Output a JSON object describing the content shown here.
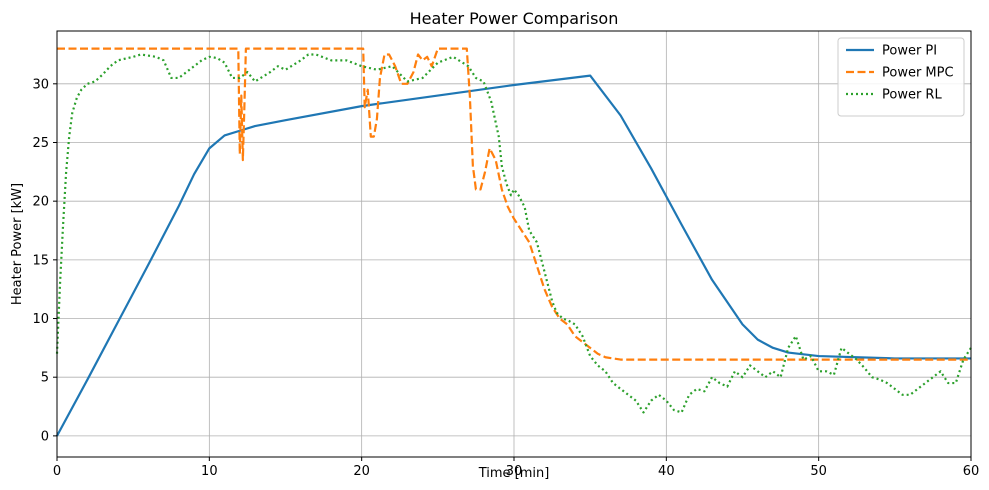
{
  "chart_data": {
    "type": "line",
    "title": "Heater Power Comparison",
    "xlabel": "Time [min]",
    "ylabel": "Heater Power [kW]",
    "xlim": [
      0,
      60
    ],
    "ylim": [
      -1.8,
      34.5
    ],
    "xticks": [
      0,
      10,
      20,
      30,
      40,
      50,
      60
    ],
    "yticks": [
      0,
      5,
      10,
      15,
      20,
      25,
      30
    ],
    "grid": true,
    "legend_position": "top-right",
    "series": [
      {
        "name": "Power PI",
        "color": "#1f77b4",
        "style": "solid",
        "points": [
          [
            0,
            0
          ],
          [
            2,
            4.8
          ],
          [
            4,
            9.7
          ],
          [
            6,
            14.6
          ],
          [
            8,
            19.6
          ],
          [
            9,
            22.3
          ],
          [
            10,
            24.5
          ],
          [
            11,
            25.6
          ],
          [
            12,
            26.0
          ],
          [
            13,
            26.4
          ],
          [
            15,
            26.9
          ],
          [
            20,
            28.1
          ],
          [
            25,
            29.0
          ],
          [
            30,
            29.9
          ],
          [
            35,
            30.7
          ],
          [
            37,
            27.3
          ],
          [
            39,
            22.8
          ],
          [
            41,
            18.0
          ],
          [
            43,
            13.3
          ],
          [
            45,
            9.5
          ],
          [
            46,
            8.2
          ],
          [
            47,
            7.5
          ],
          [
            48,
            7.1
          ],
          [
            50,
            6.8
          ],
          [
            55,
            6.6
          ],
          [
            60,
            6.6
          ]
        ]
      },
      {
        "name": "Power MPC",
        "color": "#ff7f0e",
        "style": "dashed",
        "points": [
          [
            0,
            33
          ],
          [
            11.9,
            33
          ],
          [
            12.0,
            24.0
          ],
          [
            12.1,
            29.0
          ],
          [
            12.2,
            23.5
          ],
          [
            12.3,
            28.0
          ],
          [
            12.4,
            33
          ],
          [
            20.1,
            33
          ],
          [
            20.2,
            28.0
          ],
          [
            20.4,
            29.5
          ],
          [
            20.6,
            25.5
          ],
          [
            20.8,
            25.5
          ],
          [
            21.0,
            27.0
          ],
          [
            21.2,
            30.5
          ],
          [
            21.5,
            32.5
          ],
          [
            21.8,
            32.5
          ],
          [
            22.2,
            31.5
          ],
          [
            22.6,
            30.0
          ],
          [
            23.0,
            30.0
          ],
          [
            23.4,
            31.0
          ],
          [
            23.7,
            32.5
          ],
          [
            24.0,
            32.0
          ],
          [
            24.3,
            32.3
          ],
          [
            24.6,
            31.5
          ],
          [
            25.0,
            33
          ],
          [
            26.9,
            33
          ],
          [
            27.1,
            29.0
          ],
          [
            27.3,
            23.0
          ],
          [
            27.5,
            21.0
          ],
          [
            27.8,
            21.0
          ],
          [
            28.1,
            22.5
          ],
          [
            28.4,
            24.5
          ],
          [
            28.8,
            23.5
          ],
          [
            29.2,
            21.0
          ],
          [
            29.6,
            19.5
          ],
          [
            30.0,
            18.5
          ],
          [
            30.5,
            17.5
          ],
          [
            31.0,
            16.5
          ],
          [
            31.5,
            14.5
          ],
          [
            32.0,
            12.5
          ],
          [
            32.5,
            11.0
          ],
          [
            33.0,
            10.0
          ],
          [
            33.5,
            9.5
          ],
          [
            34.0,
            8.5
          ],
          [
            34.5,
            8.0
          ],
          [
            35.0,
            7.5
          ],
          [
            35.5,
            7.0
          ],
          [
            36.0,
            6.7
          ],
          [
            37.0,
            6.5
          ],
          [
            40,
            6.5
          ],
          [
            50,
            6.5
          ],
          [
            60,
            6.5
          ]
        ]
      },
      {
        "name": "Power RL",
        "color": "#2ca02c",
        "style": "dotted",
        "points": [
          [
            0,
            7
          ],
          [
            0.2,
            13
          ],
          [
            0.4,
            18
          ],
          [
            0.6,
            22.5
          ],
          [
            0.8,
            25.5
          ],
          [
            1.0,
            27.5
          ],
          [
            1.3,
            28.8
          ],
          [
            1.6,
            29.5
          ],
          [
            2.0,
            30.0
          ],
          [
            2.5,
            30.2
          ],
          [
            3.0,
            30.8
          ],
          [
            3.5,
            31.5
          ],
          [
            4.0,
            32.0
          ],
          [
            5.0,
            32.3
          ],
          [
            5.5,
            32.5
          ],
          [
            6.5,
            32.3
          ],
          [
            7.0,
            32.0
          ],
          [
            7.5,
            30.5
          ],
          [
            8.0,
            30.5
          ],
          [
            8.5,
            31.0
          ],
          [
            9.0,
            31.5
          ],
          [
            9.5,
            32.0
          ],
          [
            10.0,
            32.3
          ],
          [
            10.5,
            32.2
          ],
          [
            11.0,
            31.8
          ],
          [
            11.5,
            30.5
          ],
          [
            12.0,
            30.5
          ],
          [
            12.5,
            31.0
          ],
          [
            13.0,
            30.2
          ],
          [
            14.0,
            31.0
          ],
          [
            14.5,
            31.5
          ],
          [
            15.0,
            31.2
          ],
          [
            16.0,
            32.0
          ],
          [
            16.5,
            32.5
          ],
          [
            17.0,
            32.5
          ],
          [
            18.0,
            32.0
          ],
          [
            19.0,
            32.0
          ],
          [
            20.0,
            31.5
          ],
          [
            21.0,
            31.2
          ],
          [
            22.0,
            31.5
          ],
          [
            23.0,
            30.2
          ],
          [
            24.0,
            30.5
          ],
          [
            25.0,
            31.8
          ],
          [
            26.0,
            32.3
          ],
          [
            27.0,
            31.5
          ],
          [
            27.5,
            30.5
          ],
          [
            28.0,
            30.2
          ],
          [
            28.5,
            28.5
          ],
          [
            29.0,
            25.5
          ],
          [
            29.2,
            23.0
          ],
          [
            29.5,
            21.5
          ],
          [
            29.8,
            20.5
          ],
          [
            30.0,
            21.0
          ],
          [
            30.3,
            20.5
          ],
          [
            30.7,
            19.5
          ],
          [
            31.0,
            17.5
          ],
          [
            31.5,
            16.5
          ],
          [
            32.0,
            14.0
          ],
          [
            32.5,
            11.5
          ],
          [
            32.8,
            10.5
          ],
          [
            33.2,
            10.0
          ],
          [
            33.6,
            9.8
          ],
          [
            34.0,
            9.5
          ],
          [
            34.5,
            8.5
          ],
          [
            35.0,
            6.8
          ],
          [
            35.5,
            6.0
          ],
          [
            36.0,
            5.5
          ],
          [
            36.5,
            4.5
          ],
          [
            37.0,
            4.0
          ],
          [
            37.5,
            3.5
          ],
          [
            38.0,
            3.0
          ],
          [
            38.5,
            2.0
          ],
          [
            39.0,
            3.0
          ],
          [
            39.5,
            3.5
          ],
          [
            40.0,
            3.0
          ],
          [
            40.5,
            2.2
          ],
          [
            41.0,
            2.0
          ],
          [
            41.5,
            3.5
          ],
          [
            42.0,
            4.0
          ],
          [
            42.5,
            3.8
          ],
          [
            43.0,
            5.0
          ],
          [
            43.5,
            4.5
          ],
          [
            44.0,
            4.2
          ],
          [
            44.5,
            5.5
          ],
          [
            45.0,
            5.0
          ],
          [
            45.5,
            6.0
          ],
          [
            46.0,
            5.5
          ],
          [
            46.5,
            5.0
          ],
          [
            47.0,
            5.5
          ],
          [
            47.5,
            5.0
          ],
          [
            48.0,
            7.5
          ],
          [
            48.5,
            8.5
          ],
          [
            49.0,
            6.5
          ],
          [
            49.5,
            6.8
          ],
          [
            50.0,
            5.5
          ],
          [
            50.5,
            5.5
          ],
          [
            51.0,
            5.2
          ],
          [
            51.5,
            7.5
          ],
          [
            52.0,
            7.0
          ],
          [
            52.5,
            6.5
          ],
          [
            53.0,
            5.8
          ],
          [
            53.5,
            5.0
          ],
          [
            54.0,
            4.8
          ],
          [
            54.5,
            4.5
          ],
          [
            55.0,
            4.0
          ],
          [
            55.5,
            3.5
          ],
          [
            56.0,
            3.5
          ],
          [
            56.5,
            4.0
          ],
          [
            57.0,
            4.5
          ],
          [
            57.5,
            5.0
          ],
          [
            58.0,
            5.5
          ],
          [
            58.5,
            4.5
          ],
          [
            59.0,
            4.5
          ],
          [
            59.5,
            6.5
          ],
          [
            60.0,
            7.5
          ]
        ]
      }
    ]
  }
}
